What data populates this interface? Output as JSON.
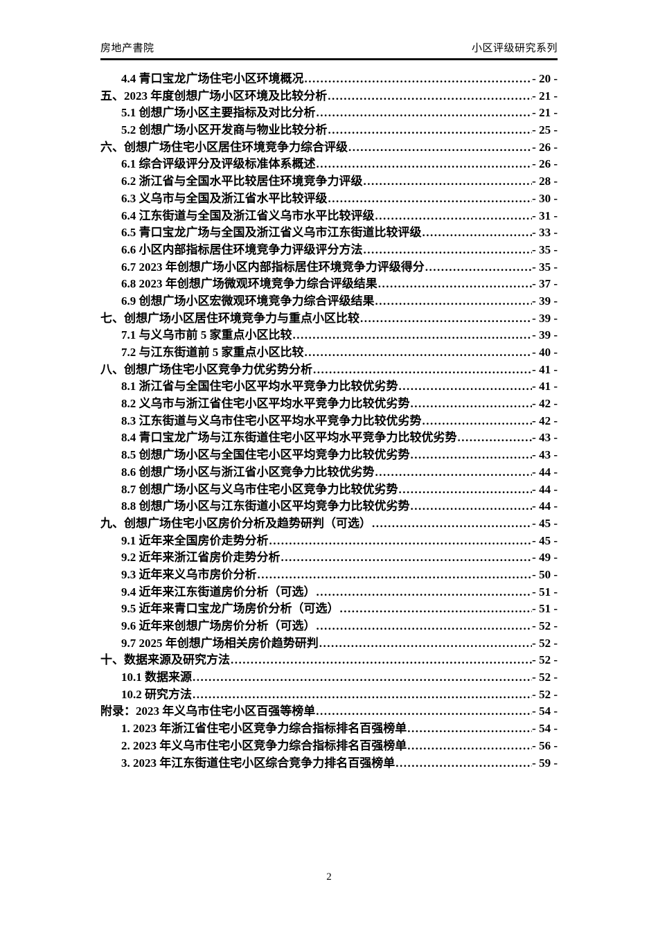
{
  "header": {
    "left": "房地产書院",
    "right": "小区评级研究系列"
  },
  "footer": {
    "page_number": "2"
  },
  "toc": {
    "entries": [
      {
        "level": 2,
        "label": "4.4 青口宝龙广场住宅小区环境概况",
        "page": "- 20 -"
      },
      {
        "level": 1,
        "label": "五、2023 年度创想广场小区环境及比较分析",
        "page": "- 21 -"
      },
      {
        "level": 2,
        "label": "5.1 创想广场小区主要指标及对比分析",
        "page": "- 21 -"
      },
      {
        "level": 2,
        "label": "5.2 创想广场小区开发商与物业比较分析",
        "page": "- 25 -"
      },
      {
        "level": 1,
        "label": "六、创想广场住宅小区居住环境竞争力综合评级",
        "page": "- 26 -"
      },
      {
        "level": 2,
        "label": "6.1 综合评级评分及评级标准体系概述",
        "page": "- 26 -"
      },
      {
        "level": 2,
        "label": "6.2 浙江省与全国水平比较居住环境竞争力评级",
        "page": "- 28 -"
      },
      {
        "level": 2,
        "label": "6.3 义乌市与全国及浙江省水平比较评级",
        "page": "- 30 -"
      },
      {
        "level": 2,
        "label": "6.4 江东街道与全国及浙江省义乌市水平比较评级",
        "page": "- 31 -"
      },
      {
        "level": 2,
        "label": "6.5 青口宝龙广场与全国及浙江省义乌市江东街道比较评级",
        "page": "- 33 -"
      },
      {
        "level": 2,
        "label": "6.6 小区内部指标居住环境竞争力评级评分方法",
        "page": "- 35 -"
      },
      {
        "level": 2,
        "label": "6.7 2023 年创想广场小区内部指标居住环境竞争力评级得分",
        "page": "- 35 -"
      },
      {
        "level": 2,
        "label": "6.8 2023 年创想广场微观环境竞争力综合评级结果",
        "page": "- 37 -"
      },
      {
        "level": 2,
        "label": "6.9 创想广场小区宏微观环境竞争力综合评级结果",
        "page": "- 39 -"
      },
      {
        "level": 1,
        "label": "七、创想广场小区居住环境竞争力与重点小区比较",
        "page": "- 39 -"
      },
      {
        "level": 2,
        "label": "7.1 与义乌市前 5 家重点小区比较",
        "page": "- 39 -"
      },
      {
        "level": 2,
        "label": "7.2 与江东街道前 5 家重点小区比较",
        "page": "- 40 -"
      },
      {
        "level": 1,
        "label": "八、创想广场住宅小区竞争力优劣势分析",
        "page": "- 41 -"
      },
      {
        "level": 2,
        "label": "8.1 浙江省与全国住宅小区平均水平竞争力比较优劣势",
        "page": "- 41 -"
      },
      {
        "level": 2,
        "label": "8.2 义乌市与浙江省住宅小区平均水平竞争力比较优劣势",
        "page": "- 42 -"
      },
      {
        "level": 2,
        "label": "8.3 江东街道与义乌市住宅小区平均水平竞争力比较优劣势",
        "page": "- 42 -"
      },
      {
        "level": 2,
        "label": "8.4 青口宝龙广场与江东街道住宅小区平均水平竞争力比较优劣势",
        "page": "- 43 -"
      },
      {
        "level": 2,
        "label": "8.5 创想广场小区与全国住宅小区平均竞争力比较优劣势",
        "page": "- 43 -"
      },
      {
        "level": 2,
        "label": "8.6 创想广场小区与浙江省小区竞争力比较优劣势",
        "page": "- 44 -"
      },
      {
        "level": 2,
        "label": "8.7 创想广场小区与义乌市住宅小区竞争力比较优劣势",
        "page": "- 44 -"
      },
      {
        "level": 2,
        "label": "8.8 创想广场小区与江东街道小区平均竞争力比较优劣势",
        "page": "- 44 -"
      },
      {
        "level": 1,
        "label": "九、创想广场住宅小区房价分析及趋势研判（可选）",
        "page": "- 45 -"
      },
      {
        "level": 2,
        "label": "9.1 近年来全国房价走势分析",
        "page": "- 45 -"
      },
      {
        "level": 2,
        "label": "9.2 近年来浙江省房价走势分析",
        "page": "- 49 -"
      },
      {
        "level": 2,
        "label": "9.3 近年来义乌市房价分析",
        "page": "- 50 -"
      },
      {
        "level": 2,
        "label": "9.4 近年来江东街道房价分析（可选）",
        "page": "- 51 -"
      },
      {
        "level": 2,
        "label": "9.5 近年来青口宝龙广场房价分析（可选）",
        "page": "- 51 -"
      },
      {
        "level": 2,
        "label": "9.6 近年来创想广场房价分析（可选）",
        "page": "- 52 -"
      },
      {
        "level": 2,
        "label": "9.7 2025 年创想广场相关房价趋势研判",
        "page": "- 52 -"
      },
      {
        "level": 1,
        "label": "十、数据来源及研究方法",
        "page": "- 52 -"
      },
      {
        "level": 2,
        "label": "10.1 数据来源",
        "page": "- 52 -"
      },
      {
        "level": 2,
        "label": "10.2 研究方法",
        "page": "- 52 -"
      },
      {
        "level": 1,
        "label": "附录：2023 年义乌市住宅小区百强等榜单",
        "page": "- 54 -"
      },
      {
        "level": 2,
        "label": "1. 2023 年浙江省住宅小区竞争力综合指标排名百强榜单",
        "page": "- 54 -"
      },
      {
        "level": 2,
        "label": "2. 2023 年义乌市住宅小区竞争力综合指标排名百强榜单",
        "page": "- 56 -"
      },
      {
        "level": 2,
        "label": "3. 2023 年江东街道住宅小区综合竞争力排名百强榜单",
        "page": "- 59 -"
      }
    ]
  }
}
